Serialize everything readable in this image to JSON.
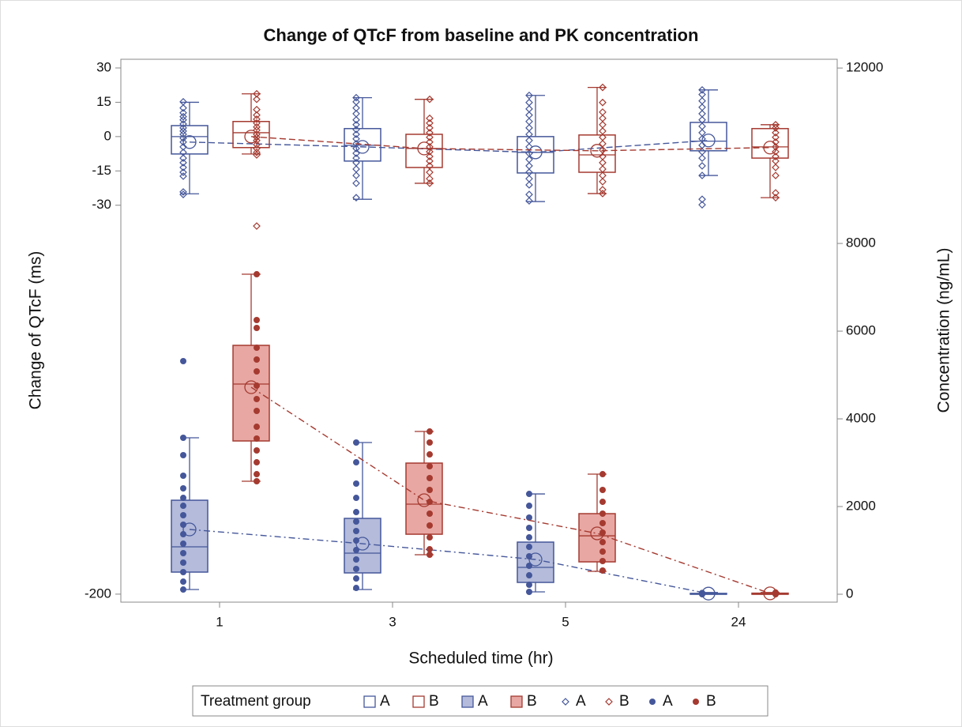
{
  "chart_data": {
    "type": "box",
    "title": "Change of QTcF from baseline and PK concentration",
    "xlabel": "Scheduled time (hr)",
    "ylabel": "Change of QTcF (ms)",
    "y2label": "Concentration (ng/mL)",
    "legend_title": "Treatment group",
    "categories": [
      "1",
      "3",
      "5",
      "24"
    ],
    "ylim": [
      -203.5,
      33.8
    ],
    "yticks": [
      30,
      15,
      0,
      -15,
      -30,
      -200
    ],
    "y2lim": [
      -180,
      12200
    ],
    "y2ticks": [
      0,
      2000,
      4000,
      6000,
      8000,
      12000
    ],
    "series": [
      {
        "name": "A",
        "color": "#45579a",
        "axis": "y",
        "fill": false,
        "marker": "diamond",
        "boxes": [
          {
            "min": -25,
            "q1": -7.6,
            "median": 0,
            "q3": 4.8,
            "max": 15,
            "mean": -2.4
          },
          {
            "min": -27.4,
            "q1": -10.7,
            "median": -3.8,
            "q3": 3.5,
            "max": 17,
            "mean": -4.5
          },
          {
            "min": -28.4,
            "q1": -15.9,
            "median": -6.9,
            "q3": 0,
            "max": 18,
            "mean": -6.9
          },
          {
            "min": -17,
            "q1": -6.2,
            "median": -2,
            "q3": 6.2,
            "max": 20.4,
            "mean": -1.7
          }
        ],
        "points": [
          [
            15.2,
            12.5,
            10.4,
            8.7,
            7.3,
            5.5,
            3.8,
            2.4,
            1.0,
            -0.7,
            -2.4,
            -4.5,
            -6.9,
            -9.4,
            -11.4,
            -13.5,
            -15.6,
            -17.3,
            -24.2,
            -25.3
          ],
          [
            17.0,
            15.2,
            12.5,
            10.0,
            7.3,
            5.2,
            3.1,
            1.0,
            -1.0,
            -3.1,
            -5.2,
            -7.3,
            -9.4,
            -11.4,
            -14.2,
            -17.0,
            -20.4,
            -26.7
          ],
          [
            18.0,
            14.9,
            12.1,
            9.4,
            6.6,
            3.8,
            1.0,
            -1.7,
            -4.5,
            -7.3,
            -10.0,
            -12.8,
            -15.6,
            -18.4,
            -21.1,
            -25.3,
            -28.1
          ],
          [
            20.4,
            18.4,
            15.6,
            12.8,
            10.0,
            7.3,
            4.5,
            1.7,
            -1.0,
            -3.8,
            -6.6,
            -9.4,
            -12.8,
            -17.0,
            -27.4,
            -29.8
          ]
        ]
      },
      {
        "name": "B",
        "color": "#a53a30",
        "axis": "y",
        "fill": false,
        "marker": "diamond",
        "boxes": [
          {
            "min": -7.6,
            "q1": -4.8,
            "median": 1.7,
            "q3": 6.6,
            "max": 18.7,
            "mean": 0
          },
          {
            "min": -20.4,
            "q1": -13.5,
            "median": -5.2,
            "q3": 1,
            "max": 16.3,
            "mean": -5.2
          },
          {
            "min": -24.9,
            "q1": -15.6,
            "median": -8,
            "q3": 0.7,
            "max": 21.5,
            "mean": -6.2
          },
          {
            "min": -26.7,
            "q1": -9.4,
            "median": -4.5,
            "q3": 3.5,
            "max": 5.2,
            "mean": -4.8
          }
        ],
        "points": [
          [
            18.7,
            16.3,
            11.8,
            9.4,
            7.6,
            5.9,
            4.2,
            2.8,
            1.0,
            -0.3,
            -1.7,
            -3.5,
            -5.2,
            -6.9,
            -8.0,
            -39.1
          ],
          [
            16.3,
            8.0,
            5.9,
            3.8,
            1.7,
            -0.3,
            -2.4,
            -4.5,
            -6.6,
            -8.7,
            -10.7,
            -12.8,
            -15.6,
            -18.4,
            -20.4
          ],
          [
            21.5,
            14.9,
            10.7,
            8.0,
            5.2,
            2.4,
            -0.3,
            -3.1,
            -5.9,
            -8.7,
            -11.4,
            -14.2,
            -17.0,
            -19.7,
            -23.2,
            -24.9
          ],
          [
            5.2,
            3.8,
            1.7,
            -0.3,
            -2.4,
            -4.5,
            -6.6,
            -8.7,
            -10.7,
            -13.5,
            -17.0,
            -24.6,
            -26.7
          ]
        ]
      },
      {
        "name": "A",
        "color": "#45579a",
        "axis": "y2",
        "fill": true,
        "marker": "dot",
        "boxes": [
          {
            "min": 108,
            "q1": 505,
            "median": 1081,
            "q3": 2144,
            "max": 3568,
            "mean": 1478
          },
          {
            "min": 108,
            "q1": 487,
            "median": 937,
            "q3": 1730,
            "max": 3460,
            "mean": 1153
          },
          {
            "min": 54,
            "q1": 270,
            "median": 613,
            "q3": 1189,
            "max": 2288,
            "mean": 793
          },
          {
            "min": 0,
            "q1": 0,
            "median": 0,
            "q3": 20,
            "max": 40,
            "mean": 15
          }
        ],
        "points": [
          [
            5316,
            3568,
            3172,
            2703,
            2415,
            2198,
            2018,
            1802,
            1586,
            1369,
            1153,
            937,
            721,
            505,
            288,
            108
          ],
          [
            3460,
            3009,
            2523,
            2198,
            1874,
            1658,
            1442,
            1225,
            1009,
            793,
            577,
            360,
            144
          ],
          [
            2288,
            2018,
            1748,
            1514,
            1297,
            1081,
            865,
            649,
            432,
            216,
            54
          ],
          [
            0,
            10,
            20,
            30
          ]
        ]
      },
      {
        "name": "B",
        "color": "#a53a30",
        "axis": "y2",
        "fill": true,
        "marker": "dot",
        "boxes": [
          {
            "min": 2577,
            "q1": 3496,
            "median": 4793,
            "q3": 5676,
            "max": 7298,
            "mean": 4721
          },
          {
            "min": 901,
            "q1": 1369,
            "median": 2054,
            "q3": 2991,
            "max": 3712,
            "mean": 2144
          },
          {
            "min": 523,
            "q1": 739,
            "median": 1333,
            "q3": 1838,
            "max": 2739,
            "mean": 1388
          },
          {
            "min": 0,
            "q1": 0,
            "median": 0,
            "q3": 25,
            "max": 40,
            "mean": 20
          }
        ],
        "points": [
          [
            7298,
            6253,
            6073,
            5622,
            5352,
            5082,
            4757,
            4451,
            4181,
            3820,
            3550,
            3280,
            3009,
            2739,
            2577
          ],
          [
            3712,
            3460,
            3189,
            2919,
            2649,
            2379,
            2108,
            1838,
            1568,
            1297,
            1027,
            901
          ],
          [
            2739,
            2379,
            2108,
            1838,
            1622,
            1406,
            1189,
            973,
            757,
            541
          ],
          [
            0,
            15,
            30,
            40
          ]
        ]
      }
    ]
  }
}
